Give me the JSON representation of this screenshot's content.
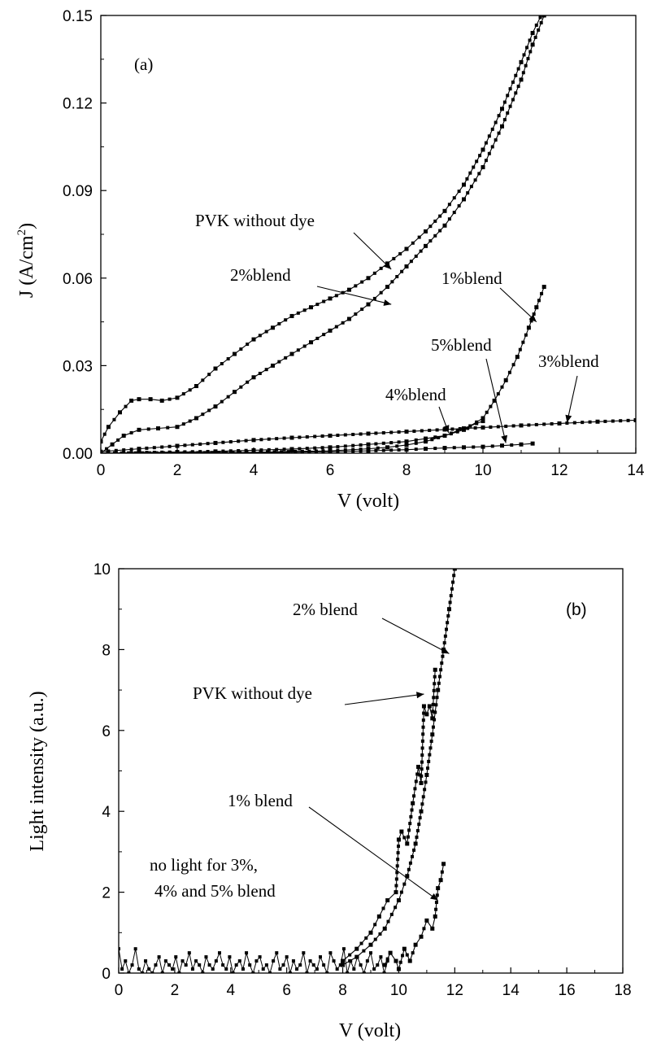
{
  "chart_data": [
    {
      "type": "scatter",
      "panel_label": "(a)",
      "xlabel": "V (volt)",
      "ylabel_main": "J (A/cm",
      "ylabel_sup": "2",
      "ylabel_close": ")",
      "xlim": [
        0,
        14
      ],
      "ylim": [
        0,
        0.15
      ],
      "xticks": [
        "0",
        "2",
        "4",
        "6",
        "8",
        "10",
        "12",
        "14"
      ],
      "yticks": [
        "0.00",
        "0.03",
        "0.06",
        "0.09",
        "0.12",
        "0.15"
      ],
      "grid": false,
      "series": [
        {
          "name": "PVK without dye",
          "x": [
            0,
            0.2,
            0.5,
            0.8,
            1.0,
            1.3,
            1.6,
            2.0,
            2.5,
            3.0,
            3.5,
            4.0,
            4.5,
            5.0,
            5.5,
            6.0,
            6.5,
            7.0,
            7.5,
            8.0,
            8.5,
            9.0,
            9.5,
            10.0,
            10.5,
            11.0,
            11.3,
            11.6
          ],
          "y": [
            0.004,
            0.009,
            0.014,
            0.018,
            0.0185,
            0.0185,
            0.018,
            0.019,
            0.023,
            0.029,
            0.034,
            0.039,
            0.043,
            0.047,
            0.05,
            0.053,
            0.056,
            0.06,
            0.065,
            0.07,
            0.076,
            0.083,
            0.092,
            0.104,
            0.118,
            0.134,
            0.144,
            0.152
          ]
        },
        {
          "name": "2%blend",
          "x": [
            0,
            0.3,
            0.6,
            1.0,
            1.5,
            2.0,
            2.5,
            3.0,
            3.5,
            4.0,
            4.5,
            5.0,
            5.5,
            6.0,
            6.5,
            7.0,
            7.5,
            8.0,
            8.5,
            9.0,
            9.5,
            10.0,
            10.5,
            11.0,
            11.3,
            11.6
          ],
          "y": [
            0.0,
            0.003,
            0.006,
            0.008,
            0.0085,
            0.009,
            0.012,
            0.016,
            0.021,
            0.026,
            0.03,
            0.034,
            0.038,
            0.042,
            0.046,
            0.051,
            0.057,
            0.064,
            0.071,
            0.078,
            0.087,
            0.098,
            0.112,
            0.128,
            0.14,
            0.15
          ]
        },
        {
          "name": "1%blend",
          "x": [
            0,
            1,
            2,
            3,
            4,
            5,
            6,
            7,
            8,
            8.5,
            9.0,
            9.5,
            10.0,
            10.3,
            10.6,
            10.9,
            11.2,
            11.4,
            11.6
          ],
          "y": [
            0.0,
            0.0002,
            0.0004,
            0.0006,
            0.001,
            0.0014,
            0.002,
            0.003,
            0.004,
            0.005,
            0.006,
            0.008,
            0.012,
            0.018,
            0.025,
            0.033,
            0.043,
            0.05,
            0.057
          ]
        },
        {
          "name": "3%blend",
          "x": [
            0,
            1,
            2,
            3,
            4,
            5,
            6,
            7,
            8,
            9,
            10,
            11,
            12,
            13,
            14
          ],
          "y": [
            0.0005,
            0.0015,
            0.0025,
            0.0035,
            0.0045,
            0.0053,
            0.006,
            0.0067,
            0.0074,
            0.0081,
            0.0088,
            0.0095,
            0.0102,
            0.0108,
            0.0113
          ]
        },
        {
          "name": "4%blend",
          "x": [
            0,
            2,
            4,
            6,
            7,
            7.5,
            8,
            8.5,
            9.0,
            9.5,
            10.0
          ],
          "y": [
            0.0,
            0.0001,
            0.0003,
            0.0008,
            0.0015,
            0.002,
            0.0028,
            0.004,
            0.006,
            0.0085,
            0.011
          ]
        },
        {
          "name": "5%blend",
          "x": [
            0,
            2,
            4,
            6,
            7,
            8,
            8.5,
            9.0,
            9.5,
            10.0,
            10.5,
            11.0,
            11.3
          ],
          "y": [
            0.0,
            0.0001,
            0.0002,
            0.0005,
            0.0008,
            0.0012,
            0.0015,
            0.0018,
            0.002,
            0.0022,
            0.0026,
            0.003,
            0.0033
          ]
        }
      ],
      "annotations": [
        {
          "text": "PVK without dye",
          "series": "PVK without dye",
          "point": [
            7.6,
            0.063
          ]
        },
        {
          "text": "2%blend",
          "series": "2%blend",
          "point": [
            7.6,
            0.051
          ]
        },
        {
          "text": "1%blend",
          "series": "1%blend",
          "point": [
            11.4,
            0.045
          ]
        },
        {
          "text": "5%blend",
          "series": "5%blend",
          "point": [
            10.6,
            0.0035
          ]
        },
        {
          "text": "3%blend",
          "series": "3%blend",
          "point": [
            12.2,
            0.0105
          ]
        },
        {
          "text": "4%blend",
          "series": "4%blend",
          "point": [
            9.1,
            0.007
          ]
        }
      ]
    },
    {
      "type": "scatter",
      "panel_label": "(b)",
      "xlabel": "V (volt)",
      "ylabel": "Light intensity (a.u.)",
      "xlim": [
        0,
        18
      ],
      "ylim": [
        0,
        10
      ],
      "xticks": [
        "0",
        "2",
        "4",
        "6",
        "8",
        "10",
        "12",
        "14",
        "16",
        "18"
      ],
      "yticks": [
        "0",
        "2",
        "4",
        "6",
        "8",
        "10"
      ],
      "grid": false,
      "series": [
        {
          "name": "2% blend",
          "x": [
            8.0,
            8.5,
            9.0,
            9.5,
            10.0,
            10.3,
            10.6,
            10.8,
            11.0,
            11.2,
            11.4,
            11.6,
            11.8,
            12.0
          ],
          "y": [
            0.2,
            0.4,
            0.7,
            1.1,
            1.8,
            2.4,
            3.2,
            4.0,
            4.9,
            5.9,
            7.0,
            8.0,
            9.0,
            10.0
          ]
        },
        {
          "name": "PVK without dye",
          "x": [
            8.0,
            8.5,
            9.0,
            9.3,
            9.6,
            9.9,
            10.0,
            10.1,
            10.3,
            10.5,
            10.7,
            10.8,
            10.9,
            11.0,
            11.1,
            11.2,
            11.3
          ],
          "y": [
            0.3,
            0.6,
            1.0,
            1.4,
            1.8,
            2.0,
            3.3,
            3.5,
            3.2,
            4.2,
            5.1,
            4.7,
            6.6,
            6.4,
            6.6,
            6.3,
            7.5
          ]
        },
        {
          "name": "1% blend",
          "x": [
            9.5,
            9.7,
            9.9,
            10.0,
            10.2,
            10.4,
            10.6,
            10.8,
            11.0,
            11.2,
            11.3,
            11.4,
            11.5,
            11.6
          ],
          "y": [
            0.2,
            0.5,
            0.3,
            0.1,
            0.6,
            0.3,
            0.7,
            0.9,
            1.3,
            1.1,
            1.4,
            2.1,
            2.3,
            2.7
          ]
        }
      ],
      "noise": [
        0.6,
        0.1,
        0.3,
        0.0,
        0.2,
        0.6,
        0.1,
        0.0,
        0.3,
        0.1,
        0.0,
        0.2,
        0.4,
        0.0,
        0.3,
        0.2,
        0.1,
        0.4,
        0.0,
        0.3,
        0.2,
        0.5,
        0.1,
        0.3,
        0.2,
        0.0,
        0.4,
        0.2,
        0.1,
        0.3,
        0.5,
        0.2,
        0.1,
        0.4,
        0.0,
        0.2,
        0.3,
        0.1,
        0.5,
        0.2,
        0.0,
        0.3,
        0.4,
        0.1,
        0.2,
        0.0,
        0.3,
        0.5,
        0.1,
        0.2,
        0.4,
        0.0,
        0.3,
        0.1,
        0.2,
        0.5,
        0.0,
        0.3,
        0.2,
        0.1,
        0.4,
        0.2,
        0.0,
        0.5,
        0.3,
        0.1,
        0.2,
        0.6,
        0.0,
        0.3,
        0.1,
        0.4,
        0.2,
        0.0,
        0.3,
        0.5,
        0.1,
        0.2,
        0.4,
        0.0,
        0.3
      ],
      "annotations": [
        {
          "text": "2% blend",
          "series": "2% blend",
          "point": [
            11.8,
            7.9
          ]
        },
        {
          "text": "PVK without dye",
          "series": "PVK without dye",
          "point": [
            10.9,
            6.9
          ]
        },
        {
          "text": "1% blend",
          "series": "1% blend",
          "point": [
            11.4,
            1.8
          ]
        }
      ],
      "note_line1": "no light for 3%,",
      "note_line2": "4% and 5%  blend"
    }
  ]
}
